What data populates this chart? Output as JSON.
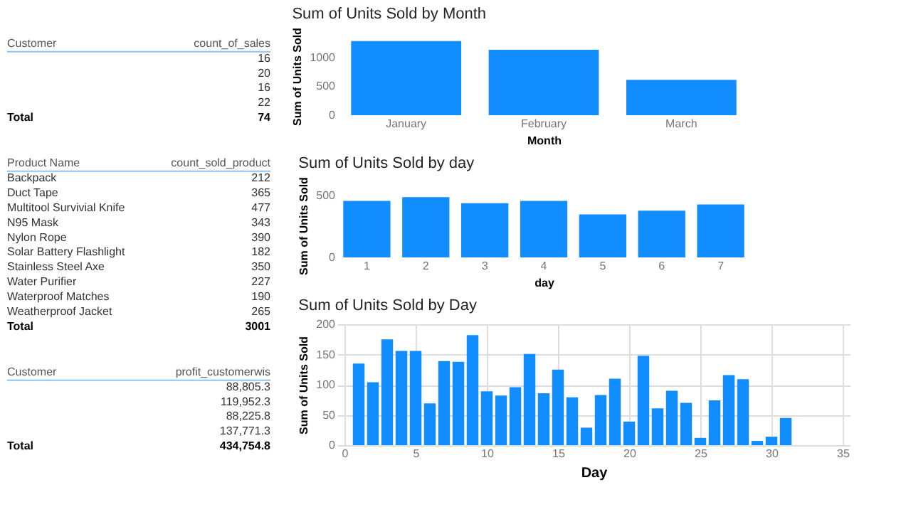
{
  "chart_data": [
    {
      "type": "other",
      "xlabel": "Customer",
      "ylabel": "count_of_sales",
      "categories": [
        null,
        null,
        null,
        null,
        "Total"
      ],
      "values": [
        16,
        20,
        16,
        22,
        74
      ],
      "data_labels": true
    },
    {
      "type": "other",
      "xlabel": "Product Name",
      "ylabel": "count_sold_product",
      "categories": [
        "Backpack",
        "Duct Tape",
        "Multitool Survivial Knife",
        "N95 Mask",
        "Nylon Rope",
        "Solar Battery Flashlight",
        "Stainless Steel Axe",
        "Water Purifier",
        "Waterproof Matches",
        "Weatherproof Jacket",
        "Total"
      ],
      "values": [
        212,
        365,
        477,
        343,
        390,
        182,
        350,
        227,
        190,
        265,
        3001
      ],
      "data_labels": true
    },
    {
      "type": "other",
      "xlabel": "Customer",
      "ylabel": "profit_customerwis",
      "categories": [
        null,
        null,
        null,
        null,
        "Total"
      ],
      "values": [
        88805.3,
        119952.3,
        88225.8,
        137771.3,
        434754.8
      ],
      "value_labels": [
        "88,805.3",
        "119,952.3",
        "88,225.8",
        "137,771.3",
        "434,754.8"
      ]
    },
    {
      "type": "bar",
      "title": "Sum of Units Sold by Month",
      "xlabel": "Month",
      "ylabel": "Sum of Units Sold",
      "categories": [
        "January",
        "February",
        "March"
      ],
      "values": [
        1280,
        1130,
        610
      ],
      "color": "#118dff",
      "ylim": [
        0,
        1350
      ],
      "yticks": [
        0,
        500,
        1000
      ]
    },
    {
      "type": "bar",
      "title": "Sum of Units Sold by day",
      "xlabel": "day",
      "ylabel": "Sum of Units Sold",
      "categories": [
        "1",
        "2",
        "3",
        "4",
        "5",
        "6",
        "7"
      ],
      "values": [
        460,
        490,
        440,
        460,
        350,
        380,
        430
      ],
      "color": "#118dff",
      "ylim": [
        0,
        520
      ],
      "yticks": [
        0,
        500
      ]
    },
    {
      "type": "bar",
      "title": "Sum of Units Sold by Day",
      "xlabel": "Day",
      "ylabel": "Sum of Units Sold",
      "x": [
        1,
        2,
        3,
        4,
        5,
        6,
        7,
        8,
        9,
        10,
        11,
        12,
        13,
        14,
        15,
        16,
        17,
        18,
        19,
        20,
        21,
        22,
        23,
        24,
        25,
        26,
        27,
        28,
        29,
        30,
        31
      ],
      "values": [
        135,
        104,
        175,
        156,
        156,
        69,
        139,
        138,
        182,
        89,
        82,
        96,
        151,
        86,
        125,
        79,
        29,
        83,
        110,
        39,
        148,
        61,
        90,
        70,
        12,
        74,
        116,
        109,
        7,
        14,
        45
      ],
      "color": "#118dff",
      "xlim": [
        0,
        35
      ],
      "xticks": [
        0,
        5,
        10,
        15,
        20,
        25,
        30,
        35
      ],
      "ylim": [
        0,
        200
      ],
      "yticks": [
        0,
        50,
        100,
        150,
        200
      ],
      "grid": true
    }
  ]
}
